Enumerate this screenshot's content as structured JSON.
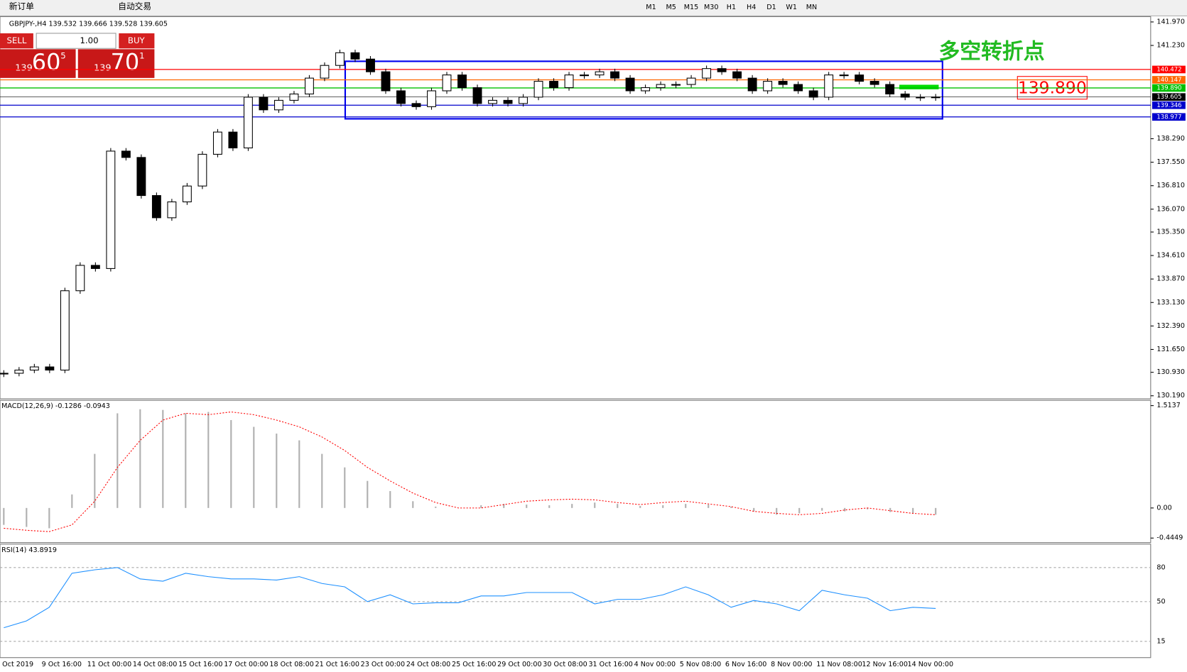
{
  "toolbar": {
    "new_order": "新订单",
    "auto_trading": "自动交易",
    "timeframes": [
      "M1",
      "M5",
      "M15",
      "M30",
      "H1",
      "H4",
      "D1",
      "W1",
      "MN"
    ]
  },
  "trade_panel": {
    "sell": "SELL",
    "lots": "1.00",
    "buy": "BUY",
    "bid_big": "139",
    "bid_main": "60",
    "bid_small": "5",
    "ask_big": "139",
    "ask_main": "70",
    "ask_small": "1"
  },
  "time_axis": [
    "Oct 2019",
    "9 Oct 16:00",
    "11 Oct 00:00",
    "14 Oct 08:00",
    "15 Oct 16:00",
    "17 Oct 00:00",
    "18 Oct 08:00",
    "21 Oct 16:00",
    "23 Oct 00:00",
    "24 Oct 08:00",
    "25 Oct 16:00",
    "29 Oct 00:00",
    "30 Oct 08:00",
    "31 Oct 16:00",
    "4 Nov 00:00",
    "5 Nov 08:00",
    "6 Nov 16:00",
    "8 Nov 00:00",
    "11 Nov 08:00",
    "12 Nov 16:00",
    "14 Nov 00:00"
  ],
  "chart_data": [
    {
      "type": "candlestick",
      "title": "GBPJPY-,H4 139.532 139.666 139.528 139.605",
      "closes": [
        130.9,
        131.0,
        131.1,
        131.0,
        133.5,
        134.3,
        134.2,
        137.9,
        137.7,
        136.5,
        135.8,
        136.3,
        136.8,
        137.8,
        138.5,
        138.0,
        139.6,
        139.2,
        139.5,
        139.7,
        140.2,
        140.6,
        141.0,
        140.8,
        140.4,
        139.8,
        139.4,
        139.3,
        139.8,
        140.3,
        139.9,
        139.4,
        139.5,
        139.4,
        139.6,
        140.1,
        139.9,
        140.3,
        140.3,
        140.4,
        140.2,
        139.8,
        139.9,
        140.0,
        140.0,
        140.2,
        140.5,
        140.4,
        140.2,
        139.8,
        140.1,
        140.0,
        139.8,
        139.6,
        140.3,
        140.3,
        140.1,
        140.0,
        139.7,
        139.6,
        139.6,
        139.605
      ],
      "ylim": [
        130.19,
        141.97
      ],
      "yticks": [
        {
          "value": 141.97,
          "label": "141.970"
        },
        {
          "value": 141.23,
          "label": "141.230"
        },
        {
          "value": 138.29,
          "label": "138.290"
        },
        {
          "value": 137.55,
          "label": "137.550"
        },
        {
          "value": 136.81,
          "label": "136.810"
        },
        {
          "value": 136.07,
          "label": "136.070"
        },
        {
          "value": 135.35,
          "label": "135.350"
        },
        {
          "value": 134.61,
          "label": "134.610"
        },
        {
          "value": 133.87,
          "label": "133.870"
        },
        {
          "value": 133.13,
          "label": "133.130"
        },
        {
          "value": 132.39,
          "label": "132.390"
        },
        {
          "value": 131.65,
          "label": "131.650"
        },
        {
          "value": 130.93,
          "label": "130.930"
        },
        {
          "value": 130.19,
          "label": "130.190"
        }
      ],
      "levels": [
        {
          "value": 140.472,
          "label": "140.472",
          "color": "#ff0000"
        },
        {
          "value": 140.147,
          "label": "140.147",
          "color": "#ff6600"
        },
        {
          "value": 139.89,
          "label": "139.890",
          "color": "#00c000"
        },
        {
          "value": 139.605,
          "label": "139.605",
          "color": "#000000"
        },
        {
          "value": 139.346,
          "label": "139.346",
          "color": "#0000cc"
        },
        {
          "value": 138.977,
          "label": "138.977",
          "color": "#0000cc"
        }
      ],
      "annotations": [
        "多空转折点",
        "139.890"
      ]
    },
    {
      "type": "bar",
      "title": "MACD(12,26,9) -0.1286 -0.0943",
      "series": [
        {
          "name": "MACD",
          "color": "#b0b0b0",
          "values": [
            -0.25,
            -0.28,
            -0.3,
            0.2,
            0.8,
            1.4,
            1.46,
            1.45,
            1.4,
            1.42,
            1.3,
            1.2,
            1.1,
            1.0,
            0.8,
            0.6,
            0.4,
            0.25,
            0.1,
            0.02,
            0.0,
            0.04,
            0.06,
            0.05,
            0.04,
            0.06,
            0.08,
            0.06,
            0.03,
            0.04,
            0.06,
            0.05,
            0.02,
            -0.05,
            -0.1,
            -0.08,
            -0.04,
            -0.05,
            -0.02,
            -0.06,
            -0.08,
            -0.1
          ]
        },
        {
          "name": "Signal",
          "color": "#ff0000",
          "values": [
            -0.3,
            -0.33,
            -0.35,
            -0.25,
            0.1,
            0.6,
            1.0,
            1.3,
            1.4,
            1.38,
            1.42,
            1.38,
            1.3,
            1.2,
            1.05,
            0.85,
            0.6,
            0.4,
            0.22,
            0.08,
            0.0,
            0.0,
            0.05,
            0.1,
            0.12,
            0.13,
            0.12,
            0.08,
            0.05,
            0.08,
            0.1,
            0.06,
            0.02,
            -0.05,
            -0.08,
            -0.1,
            -0.08,
            -0.03,
            0.0,
            -0.04,
            -0.08,
            -0.1
          ]
        }
      ],
      "ylim": [
        -0.4449,
        1.5137
      ],
      "yticks": [
        1.5137,
        {
          "value": 0,
          "label": "0.00"
        },
        -0.4449
      ]
    },
    {
      "type": "line",
      "title": "RSI(14) 43.8919",
      "color": "#1e90ff",
      "values": [
        27,
        33,
        45,
        75,
        78,
        80,
        70,
        68,
        75,
        72,
        70,
        70,
        69,
        72,
        66,
        63,
        50,
        56,
        48,
        49,
        49,
        55,
        55,
        58,
        58,
        58,
        48,
        52,
        52,
        56,
        63,
        56,
        45,
        51,
        48,
        42,
        60,
        56,
        53,
        42,
        45,
        44
      ],
      "ylim": [
        0,
        100
      ],
      "yticks": [
        80,
        50,
        15
      ]
    }
  ]
}
